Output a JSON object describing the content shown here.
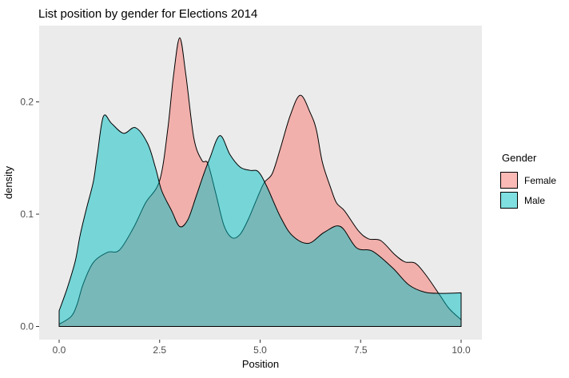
{
  "chart_data": {
    "type": "area",
    "subtype": "density",
    "title": "List position by gender for Elections 2014",
    "xlabel": "Position",
    "ylabel": "density",
    "xlim": [
      -0.5,
      10.5
    ],
    "ylim": [
      -0.012,
      0.268
    ],
    "grid": false,
    "panel_bg": "#EBEBEB",
    "stroke_color": "#000000",
    "fill_alpha": 0.5,
    "tick_color": "#333333",
    "tick_label_color": "#4D4D4D",
    "x_ticks": [
      {
        "value": 0,
        "label": "0.0"
      },
      {
        "value": 2.5,
        "label": "2.5"
      },
      {
        "value": 5,
        "label": "5.0"
      },
      {
        "value": 7.5,
        "label": "7.5"
      },
      {
        "value": 10,
        "label": "10.0"
      }
    ],
    "y_ticks": [
      {
        "value": 0,
        "label": "0.0"
      },
      {
        "value": 0.1,
        "label": "0.1"
      },
      {
        "value": 0.2,
        "label": "0.2"
      }
    ],
    "legend": {
      "title": "Gender",
      "position": "right",
      "entries": [
        {
          "label": "Female",
          "color": "#F8766D"
        },
        {
          "label": "Male",
          "color": "#00BFC4"
        }
      ]
    },
    "series": [
      {
        "name": "Female",
        "color": "#F8766D",
        "points": [
          [
            0,
            0.002
          ],
          [
            0.3,
            0.009
          ],
          [
            0.45,
            0.02
          ],
          [
            0.6,
            0.038
          ],
          [
            0.85,
            0.057
          ],
          [
            1.2,
            0.066
          ],
          [
            1.5,
            0.068
          ],
          [
            1.85,
            0.088
          ],
          [
            2.15,
            0.11
          ],
          [
            2.5,
            0.13
          ],
          [
            2.7,
            0.175
          ],
          [
            2.85,
            0.225
          ],
          [
            3.0,
            0.257
          ],
          [
            3.15,
            0.225
          ],
          [
            3.35,
            0.168
          ],
          [
            3.55,
            0.148
          ],
          [
            3.7,
            0.145
          ],
          [
            3.9,
            0.118
          ],
          [
            4.1,
            0.09
          ],
          [
            4.3,
            0.079
          ],
          [
            4.5,
            0.082
          ],
          [
            4.7,
            0.095
          ],
          [
            4.9,
            0.112
          ],
          [
            5.1,
            0.128
          ],
          [
            5.3,
            0.136
          ],
          [
            5.5,
            0.158
          ],
          [
            5.75,
            0.188
          ],
          [
            6.0,
            0.206
          ],
          [
            6.25,
            0.19
          ],
          [
            6.4,
            0.175
          ],
          [
            6.55,
            0.146
          ],
          [
            6.75,
            0.124
          ],
          [
            6.9,
            0.11
          ],
          [
            7.1,
            0.103
          ],
          [
            7.45,
            0.085
          ],
          [
            7.7,
            0.078
          ],
          [
            8.0,
            0.0765
          ],
          [
            8.35,
            0.064
          ],
          [
            8.6,
            0.0575
          ],
          [
            8.85,
            0.0565
          ],
          [
            9.1,
            0.047
          ],
          [
            9.45,
            0.029
          ],
          [
            9.7,
            0.016
          ],
          [
            10,
            0.006
          ]
        ]
      },
      {
        "name": "Male",
        "color": "#00BFC4",
        "points": [
          [
            0,
            0.014
          ],
          [
            0.2,
            0.034
          ],
          [
            0.4,
            0.058
          ],
          [
            0.52,
            0.081
          ],
          [
            0.68,
            0.105
          ],
          [
            0.85,
            0.129
          ],
          [
            0.95,
            0.153
          ],
          [
            1.1,
            0.187
          ],
          [
            1.3,
            0.181
          ],
          [
            1.6,
            0.172
          ],
          [
            1.9,
            0.177
          ],
          [
            2.2,
            0.163
          ],
          [
            2.4,
            0.141
          ],
          [
            2.55,
            0.121
          ],
          [
            2.8,
            0.103
          ],
          [
            3.0,
            0.089
          ],
          [
            3.2,
            0.095
          ],
          [
            3.4,
            0.115
          ],
          [
            3.6,
            0.136
          ],
          [
            3.75,
            0.15
          ],
          [
            4.0,
            0.17
          ],
          [
            4.25,
            0.153
          ],
          [
            4.5,
            0.142
          ],
          [
            4.75,
            0.139
          ],
          [
            4.95,
            0.138
          ],
          [
            5.15,
            0.126
          ],
          [
            5.5,
            0.098
          ],
          [
            5.8,
            0.081
          ],
          [
            6.2,
            0.074
          ],
          [
            6.6,
            0.084
          ],
          [
            7.0,
            0.089
          ],
          [
            7.4,
            0.07
          ],
          [
            7.8,
            0.067
          ],
          [
            8.3,
            0.052
          ],
          [
            8.7,
            0.037
          ],
          [
            9.1,
            0.0305
          ],
          [
            9.5,
            0.0295
          ],
          [
            10,
            0.03
          ]
        ]
      }
    ]
  }
}
